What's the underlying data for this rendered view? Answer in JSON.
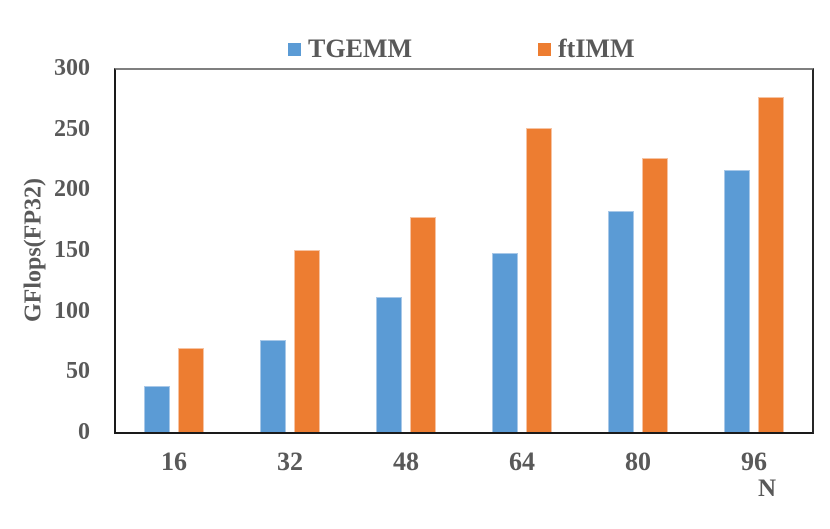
{
  "chart_data": {
    "type": "bar",
    "title": "",
    "xlabel": "N",
    "ylabel": "GFlops(FP32)",
    "categories": [
      "16",
      "32",
      "48",
      "64",
      "80",
      "96"
    ],
    "series": [
      {
        "name": "TGEMM",
        "color": "#5B9BD5",
        "edge_color": "#A8C8E8",
        "values": [
          38,
          76,
          112,
          148,
          183,
          217
        ]
      },
      {
        "name": "ftIMM",
        "color": "#ED7D31",
        "edge_color": "#F6C3A2",
        "values": [
          70,
          151,
          178,
          252,
          227,
          278
        ]
      }
    ],
    "ylim": [
      0,
      300
    ],
    "yticks": [
      "0",
      "50",
      "100",
      "150",
      "200",
      "250",
      "300"
    ],
    "grid": false,
    "legend_position": "top-center",
    "text_color": "#595959",
    "axis_color": "#1a1a1a"
  }
}
